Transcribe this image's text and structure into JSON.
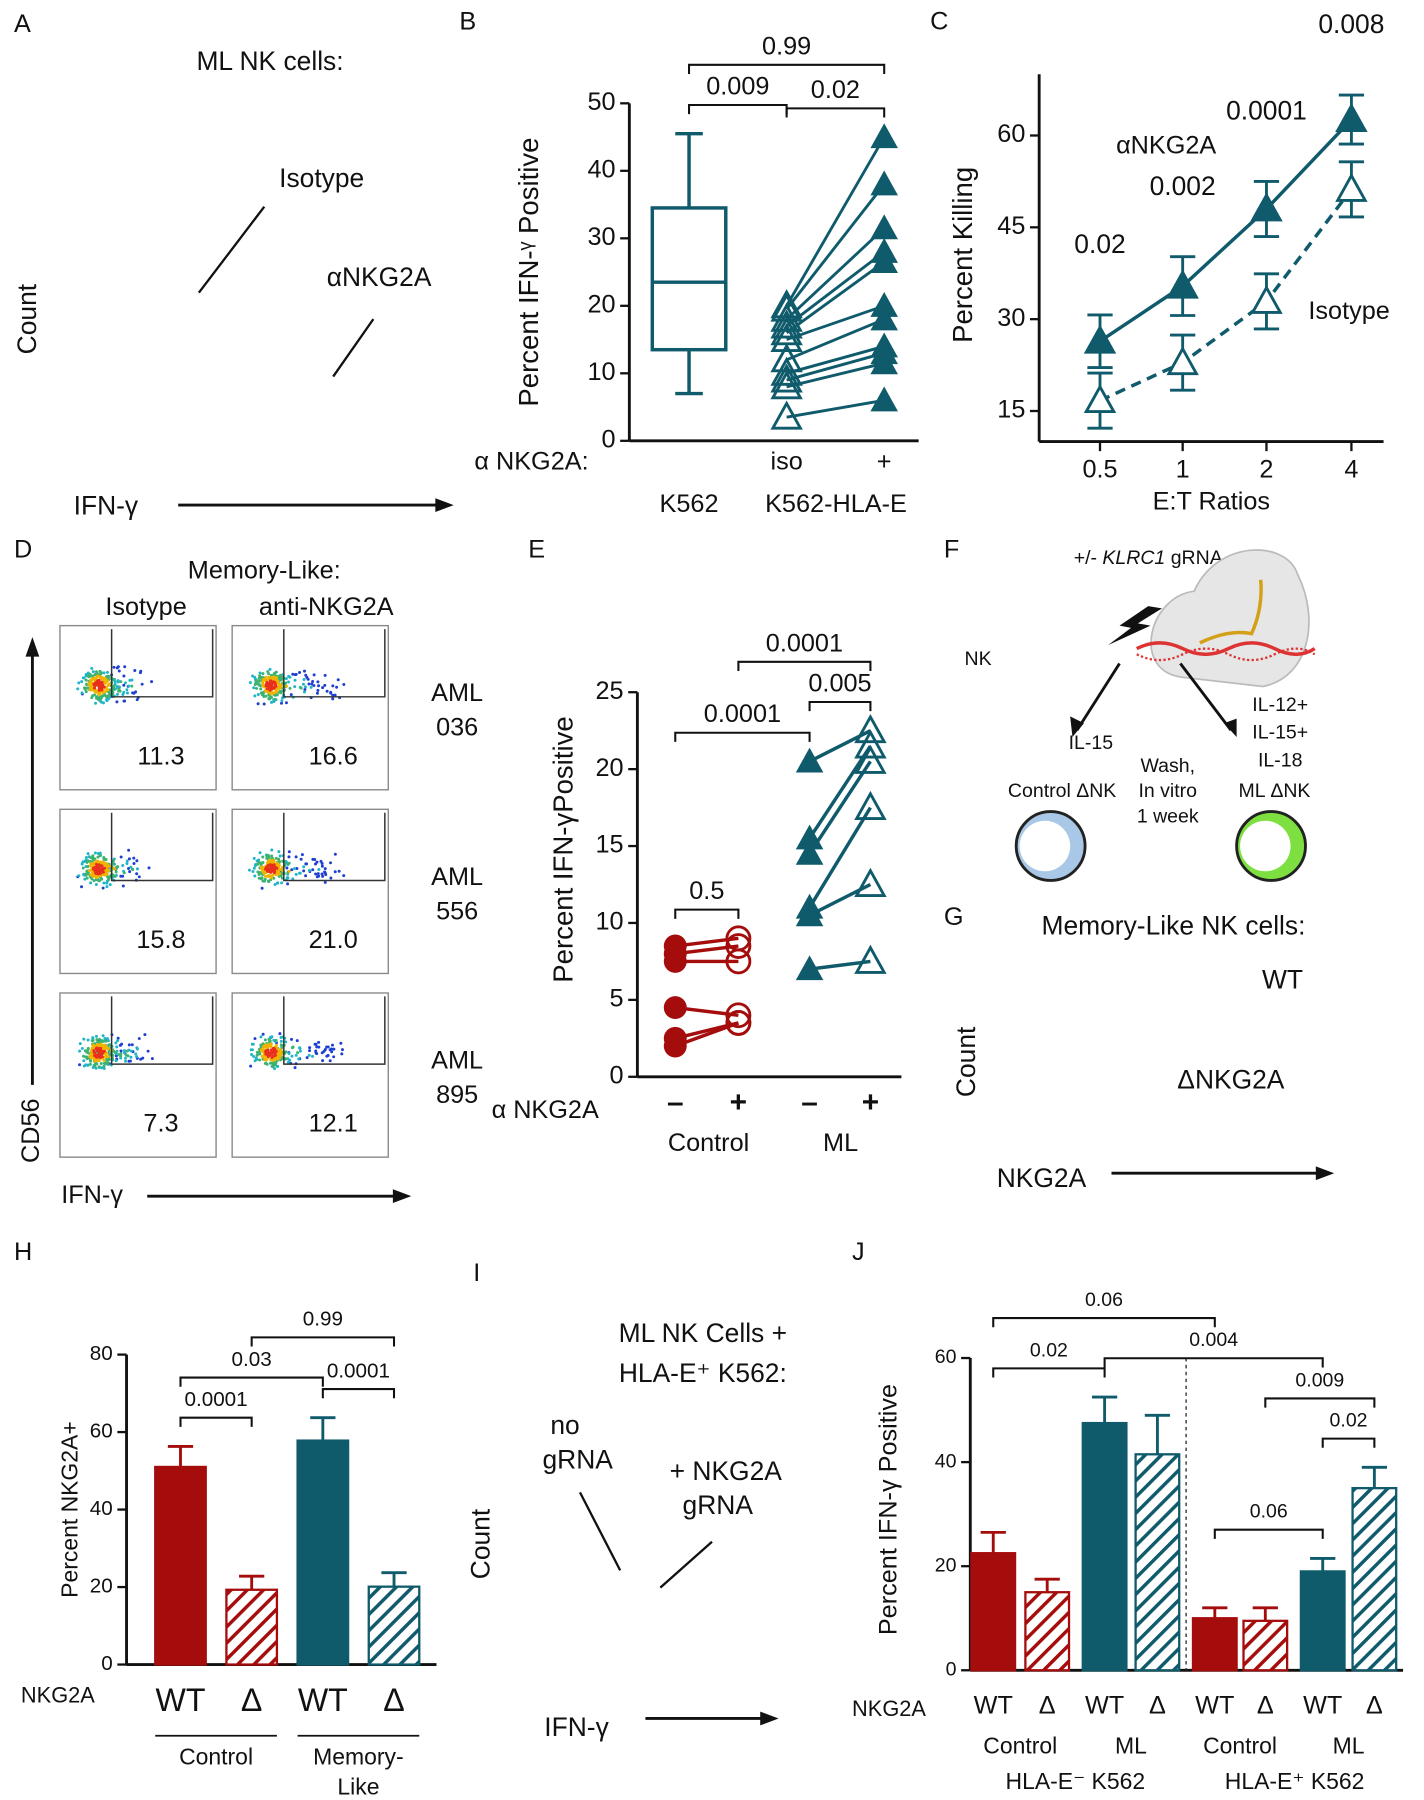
{
  "chart_data": [
    {
      "type": "overlay-histogram",
      "label": "A",
      "title": [
        "ML NK cells:"
      ],
      "annotations": [
        "Isotype",
        "αNKG2A"
      ],
      "y_label": "Count",
      "x_label": "IFN-γ"
    },
    {
      "type": "box-paired",
      "label": "B",
      "y_label": "Percent  IFN-ᵞ Positive",
      "ylim": [
        0,
        50
      ],
      "yticks": [
        0,
        10,
        20,
        30,
        40,
        50
      ],
      "row_label": "α NKG2A:",
      "treatments": [
        "iso",
        "+"
      ],
      "groups": [
        "K562",
        "K562-HLA-E"
      ],
      "color": "#0f5a6b",
      "box": {
        "whisker_low": 7,
        "q1": 13.5,
        "median": 23.5,
        "q3": 34.5,
        "whisker_high": 45.5
      },
      "paired": [
        [
          20,
          19.5,
          18,
          17,
          16,
          15,
          12,
          10,
          9,
          8,
          3.5
        ],
        [
          45,
          38,
          31.5,
          28,
          26.5,
          20,
          18,
          14,
          13,
          11.5,
          6
        ]
      ],
      "brackets": [
        {
          "from": 0,
          "to": 1,
          "label": "0.009"
        },
        {
          "from": 1,
          "to": 2,
          "label": "0.02"
        },
        {
          "from": 0,
          "to": 2,
          "label": "0.99"
        }
      ]
    },
    {
      "type": "line",
      "label": "C",
      "y_label": "Percent  Killing",
      "x_label": "E:T Ratios",
      "categories": [
        "0.5",
        "1",
        "2",
        "4"
      ],
      "ylim": [
        10,
        70
      ],
      "yticks": [
        15,
        30,
        45,
        60
      ],
      "color": "#0f5a6b",
      "series": [
        {
          "name": "αNKG2A",
          "values": [
            26.4,
            35.4,
            48,
            62.6
          ],
          "errors": [
            4.3,
            4.8,
            4.5,
            4
          ],
          "marker": "filled",
          "line": "solid"
        },
        {
          "name": "Isotype",
          "values": [
            16.7,
            22.9,
            32.9,
            51.2
          ],
          "errors": [
            4.5,
            4.5,
            4.5,
            4.5
          ],
          "marker": "hollow",
          "line": "dashed"
        }
      ],
      "p_values": [
        "0.02",
        "0.002",
        "0.0001",
        "0.008"
      ]
    },
    {
      "type": "flow",
      "label": "D",
      "title": "Memory-Like:",
      "columns": [
        "Isotype",
        "anti-NKG2A"
      ],
      "rows": [
        [
          "AML",
          "036"
        ],
        [
          "AML",
          "556"
        ],
        [
          "AML",
          "895"
        ]
      ],
      "values": [
        [
          11.3,
          16.6
        ],
        [
          15.8,
          21
        ],
        [
          7.3,
          12.1
        ]
      ],
      "value_labels": [
        [
          "11.3",
          "16.6"
        ],
        [
          "15.8",
          "21.0"
        ],
        [
          "7.3",
          "12.1"
        ]
      ],
      "x_label": "IFN-γ",
      "y_label": "CD56"
    },
    {
      "type": "paired-dot",
      "label": "E",
      "y_label": "Percent IFN-γPositive",
      "ylim": [
        0,
        25
      ],
      "yticks": [
        0,
        5,
        10,
        15,
        20,
        25
      ],
      "row_label": "α NKG2A",
      "ticks": [
        "–",
        "+",
        "–",
        "+"
      ],
      "groups": [
        "Control",
        "ML"
      ],
      "pairs": [
        {
          "color": "#a50d0d",
          "marker": "circle",
          "before": [
            8.5,
            8,
            7.5,
            4.5,
            2.5,
            2
          ],
          "after": [
            9,
            8.5,
            7.5,
            4,
            3.5,
            3.5
          ]
        },
        {
          "color": "#0f5a6b",
          "marker": "triangle",
          "before": [
            20.5,
            15.5,
            14.5,
            11,
            10.5,
            7
          ],
          "after": [
            22.5,
            21.5,
            20.5,
            17.5,
            12.5,
            7.5
          ]
        }
      ],
      "brackets": [
        {
          "from": 0,
          "to": 1,
          "label": "0.5"
        },
        {
          "from": 0,
          "to": 2,
          "label": "0.0001"
        },
        {
          "from": 2,
          "to": 3,
          "label": "0.005"
        },
        {
          "from": 1,
          "to": 3,
          "label": "0.0001"
        }
      ]
    },
    {
      "type": "diagram",
      "label": "F",
      "guide": [
        "+/- ",
        "KLRC1",
        " gRNA"
      ],
      "cell": "NK",
      "left_cytokines": [
        "IL-15"
      ],
      "right_cytokines": [
        "IL-12+",
        "IL-15+",
        "IL-18"
      ],
      "culture": [
        "Wash,",
        "In vitro",
        "1 week"
      ],
      "outcomes": [
        "Control ΔNK",
        "ML ΔNK"
      ],
      "outcome_colors": [
        "#5b9bd5",
        "#22c022"
      ]
    },
    {
      "type": "overlay-histogram",
      "label": "G",
      "title": [
        "Memory-Like NK cells:"
      ],
      "annotations": [
        "WT",
        "ΔNKG2A"
      ],
      "y_label": "Count",
      "x_label": "NKG2A"
    },
    {
      "type": "bar",
      "label": "H",
      "y_label": "Percent NKG2A+",
      "ylim": [
        0,
        80
      ],
      "yticks": [
        0,
        20,
        40,
        60,
        80
      ],
      "row_label": "NKG2A",
      "categories": [
        "WT",
        "Δ",
        "WT",
        "Δ"
      ],
      "values": [
        51,
        19.3,
        57.8,
        20.1
      ],
      "errors": [
        5.3,
        3.5,
        5.9,
        3.6
      ],
      "colors": [
        "#a50d0d",
        "#a50d0d",
        "#0f5a6b",
        "#0f5a6b"
      ],
      "hatched": [
        false,
        true,
        false,
        true
      ],
      "groups": [
        {
          "lines": [
            "Control"
          ],
          "from": 0,
          "to": 1
        },
        {
          "lines": [
            "Memory-",
            "Like"
          ],
          "from": 2,
          "to": 3
        }
      ],
      "group_rule": true,
      "brackets": [
        {
          "from": 0,
          "to": 1,
          "label": "0.0001"
        },
        {
          "from": 2,
          "to": 3,
          "label": "0.0001"
        },
        {
          "from": 0,
          "to": 2,
          "label": "0.03"
        },
        {
          "from": 1,
          "to": 3,
          "label": "0.99"
        }
      ]
    },
    {
      "type": "overlay-histogram",
      "label": "I",
      "title": [
        "ML NK Cells +",
        "HLA-E⁺ K562:"
      ],
      "annotations": [
        "no",
        "gRNA",
        "+ NKG2A",
        "gRNA"
      ],
      "y_label": "Count",
      "x_label": "IFN-γ"
    },
    {
      "type": "bar",
      "label": "J",
      "y_label": "Percent  IFN-γ Positive",
      "ylim": [
        0,
        60
      ],
      "yticks": [
        0,
        20,
        40,
        60
      ],
      "row_label": "NKG2A",
      "categories": [
        "WT",
        "Δ",
        "WT",
        "Δ",
        "WT",
        "Δ",
        "WT",
        "Δ"
      ],
      "values": [
        22.5,
        15,
        47.5,
        41.5,
        10,
        9.5,
        19,
        35
      ],
      "errors": [
        4,
        2.5,
        5,
        7.5,
        2,
        2.5,
        2.5,
        4
      ],
      "colors": [
        "#a50d0d",
        "#a50d0d",
        "#0f5a6b",
        "#0f5a6b",
        "#a50d0d",
        "#a50d0d",
        "#0f5a6b",
        "#0f5a6b"
      ],
      "hatched": [
        false,
        true,
        false,
        true,
        false,
        true,
        false,
        true
      ],
      "groups": [
        {
          "lines": [
            "Control"
          ],
          "from": 0,
          "to": 1
        },
        {
          "lines": [
            "ML"
          ],
          "from": 2,
          "to": 3
        },
        {
          "lines": [
            "Control"
          ],
          "from": 4,
          "to": 5
        },
        {
          "lines": [
            "ML"
          ],
          "from": 6,
          "to": 7
        }
      ],
      "supergroups": [
        {
          "lines": [
            "HLA-E⁻ K562"
          ],
          "from": 0,
          "to": 3
        },
        {
          "lines": [
            "HLA-E⁺ K562"
          ],
          "from": 4,
          "to": 7
        }
      ],
      "divider": true,
      "brackets": [
        {
          "from": 0,
          "to": 2,
          "label": "0.02"
        },
        {
          "from": 4,
          "to": 6,
          "label": "0.06"
        },
        {
          "from": 6,
          "to": 7,
          "label": "0.02"
        },
        {
          "from": 5,
          "to": 7,
          "label": "0.009"
        },
        {
          "from": 2,
          "to": 6,
          "label": "0.004"
        },
        {
          "from": 0,
          "to": 4,
          "label": "0.06"
        }
      ]
    }
  ]
}
